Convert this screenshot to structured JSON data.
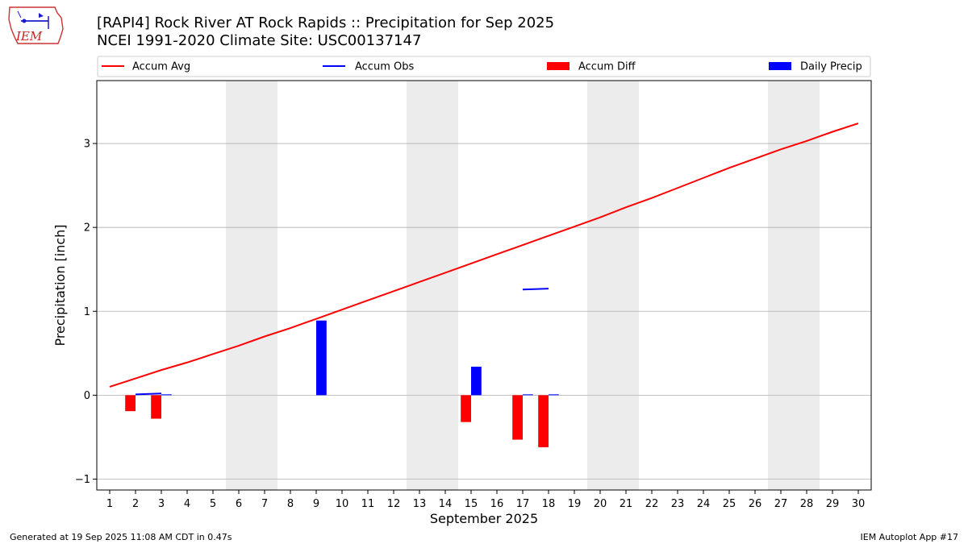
{
  "header": {
    "title_line1": "[RAPI4] Rock River  AT Rock Rapids :: Precipitation for Sep 2025",
    "title_line2": "NCEI 1991-2020 Climate Site: USC00137147",
    "logo_text": "IEM"
  },
  "footer": {
    "generated": "Generated at 19 Sep 2025 11:08 AM CDT in 0.47s",
    "app": "IEM Autoplot App #17"
  },
  "chart_data": {
    "type": "bar",
    "xlabel": "September 2025",
    "ylabel": "Precipitation [inch]",
    "xlim": [
      0.5,
      30.5
    ],
    "ylim": [
      -1.13,
      3.75
    ],
    "yticks": [
      -1,
      0,
      1,
      2,
      3
    ],
    "days": [
      1,
      2,
      3,
      4,
      5,
      6,
      7,
      8,
      9,
      10,
      11,
      12,
      13,
      14,
      15,
      16,
      17,
      18,
      19,
      20,
      21,
      22,
      23,
      24,
      25,
      26,
      27,
      28,
      29,
      30
    ],
    "weekends": [
      [
        6,
        7
      ],
      [
        13,
        14
      ],
      [
        20,
        21
      ],
      [
        27,
        28
      ]
    ],
    "grid": true,
    "legend": {
      "placement": "top",
      "entries": [
        "Accum Avg",
        "Accum Obs",
        "Accum Diff",
        "Daily Precip"
      ]
    },
    "colors": {
      "avg": "#ff0000",
      "obs": "#0000ff",
      "diff": "#ff0000",
      "daily": "#0000ff",
      "weekend": "#ececec",
      "grid": "#b0b0b0"
    },
    "series": [
      {
        "name": "Accum Avg",
        "kind": "line",
        "x": [
          1,
          2,
          3,
          4,
          5,
          6,
          7,
          8,
          9,
          10,
          11,
          12,
          13,
          14,
          15,
          16,
          17,
          18,
          19,
          20,
          21,
          22,
          23,
          24,
          25,
          26,
          27,
          28,
          29,
          30
        ],
        "values": [
          0.1,
          0.2,
          0.3,
          0.39,
          0.49,
          0.59,
          0.7,
          0.8,
          0.91,
          1.02,
          1.13,
          1.24,
          1.35,
          1.46,
          1.57,
          1.68,
          1.79,
          1.9,
          2.01,
          2.12,
          2.24,
          2.35,
          2.47,
          2.59,
          2.71,
          2.82,
          2.93,
          3.03,
          3.14,
          3.24
        ]
      },
      {
        "name": "Accum Obs",
        "kind": "line",
        "segments": [
          {
            "x": [
              2,
              3
            ],
            "values": [
              0.01,
              0.02
            ]
          },
          {
            "x": [
              17,
              18
            ],
            "values": [
              1.26,
              1.27
            ]
          }
        ]
      },
      {
        "name": "Accum Diff",
        "kind": "bar",
        "x": [
          2,
          3,
          15,
          17,
          18
        ],
        "values": [
          -0.19,
          -0.28,
          -0.32,
          -0.53,
          -0.62
        ]
      },
      {
        "name": "Daily Precip",
        "kind": "bar",
        "x": [
          3,
          9,
          15,
          17,
          18
        ],
        "values": [
          0.01,
          0.89,
          0.34,
          0.01,
          0.01
        ]
      }
    ]
  }
}
